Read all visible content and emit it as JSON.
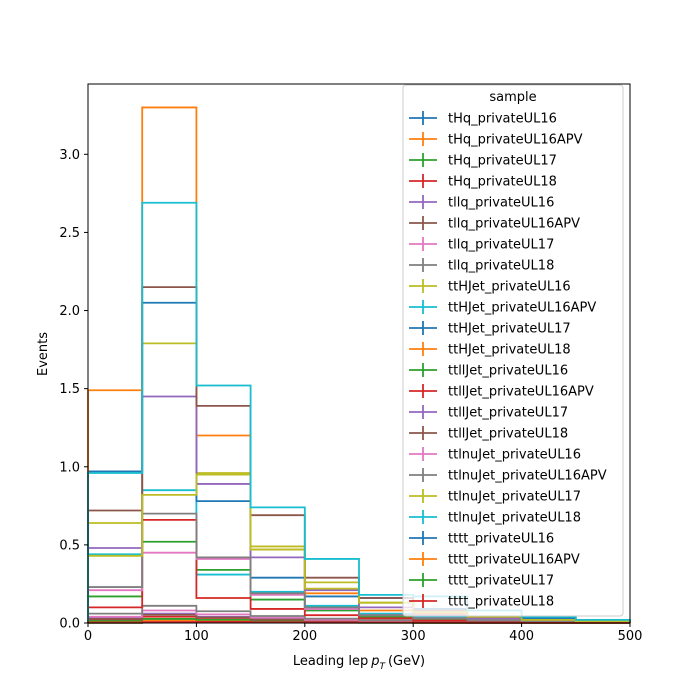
{
  "chart_data": {
    "type": "step-histogram",
    "xlabel": "Leading lep",
    "xlabel_sub": "T",
    "xlabel_unit": "(GeV)",
    "ylabel": "Events",
    "xlim": [
      0,
      500
    ],
    "ylim": [
      0,
      3.45
    ],
    "x_ticks": [
      0,
      100,
      200,
      300,
      400,
      500
    ],
    "y_ticks": [
      0.0,
      0.5,
      1.0,
      1.5,
      2.0,
      2.5,
      3.0
    ],
    "bin_edges": [
      0,
      50,
      100,
      150,
      200,
      250,
      300,
      350,
      400,
      450,
      500
    ],
    "legend_title": "sample",
    "legend_position": "upper-right",
    "series": [
      {
        "name": "tHq_privateUL16",
        "color": "#1f77b4",
        "values": [
          0.012,
          0.02,
          0.016,
          0.011,
          0.007,
          0.005,
          0.003,
          0.002,
          0.001,
          0.001
        ]
      },
      {
        "name": "tHq_privateUL16APV",
        "color": "#ff7f0e",
        "values": [
          0.01,
          0.017,
          0.014,
          0.01,
          0.006,
          0.004,
          0.003,
          0.002,
          0.001,
          0.001
        ]
      },
      {
        "name": "tHq_privateUL17",
        "color": "#2ca02c",
        "values": [
          0.016,
          0.026,
          0.021,
          0.014,
          0.009,
          0.006,
          0.004,
          0.003,
          0.002,
          0.001
        ]
      },
      {
        "name": "tHq_privateUL18",
        "color": "#d62728",
        "values": [
          0.024,
          0.04,
          0.032,
          0.021,
          0.013,
          0.009,
          0.006,
          0.004,
          0.003,
          0.002
        ]
      },
      {
        "name": "tllq_privateUL16",
        "color": "#9467bd",
        "values": [
          0.03,
          0.06,
          0.04,
          0.025,
          0.015,
          0.01,
          0.007,
          0.005,
          0.003,
          0.002
        ]
      },
      {
        "name": "tllq_privateUL16APV",
        "color": "#8c564b",
        "values": [
          0.026,
          0.052,
          0.035,
          0.022,
          0.013,
          0.009,
          0.006,
          0.004,
          0.003,
          0.002
        ]
      },
      {
        "name": "tllq_privateUL17",
        "color": "#e377c2",
        "values": [
          0.04,
          0.08,
          0.055,
          0.035,
          0.02,
          0.013,
          0.009,
          0.006,
          0.004,
          0.003
        ]
      },
      {
        "name": "tllq_privateUL18",
        "color": "#7f7f7f",
        "values": [
          0.06,
          0.11,
          0.075,
          0.045,
          0.028,
          0.018,
          0.012,
          0.008,
          0.005,
          0.003
        ]
      },
      {
        "name": "ttHJet_privateUL16",
        "color": "#bcbd22",
        "values": [
          0.64,
          1.79,
          0.96,
          0.49,
          0.26,
          0.13,
          0.08,
          0.04,
          0.02,
          0.01
        ]
      },
      {
        "name": "ttHJet_privateUL16APV",
        "color": "#17becf",
        "values": [
          0.44,
          0.85,
          0.31,
          0.2,
          0.11,
          0.06,
          0.04,
          0.02,
          0.01,
          0.005
        ]
      },
      {
        "name": "ttHJet_privateUL17",
        "color": "#1f77b4",
        "values": [
          0.97,
          2.05,
          0.78,
          0.29,
          0.17,
          0.16,
          0.09,
          0.03,
          0.03,
          0.01
        ]
      },
      {
        "name": "ttHJet_privateUL18",
        "color": "#ff7f0e",
        "values": [
          1.49,
          3.3,
          1.2,
          0.47,
          0.19,
          0.08,
          0.06,
          0.03,
          0.02,
          0.01
        ]
      },
      {
        "name": "ttllJet_privateUL16",
        "color": "#2ca02c",
        "values": [
          0.17,
          0.52,
          0.34,
          0.15,
          0.08,
          0.04,
          0.02,
          0.01,
          0.005,
          0.003
        ]
      },
      {
        "name": "ttllJet_privateUL16APV",
        "color": "#d62728",
        "values": [
          0.1,
          0.66,
          0.16,
          0.09,
          0.05,
          0.03,
          0.015,
          0.01,
          0.005,
          0.003
        ]
      },
      {
        "name": "ttllJet_privateUL17",
        "color": "#9467bd",
        "values": [
          0.48,
          1.45,
          0.89,
          0.42,
          0.21,
          0.1,
          0.05,
          0.03,
          0.015,
          0.008
        ]
      },
      {
        "name": "ttllJet_privateUL18",
        "color": "#8c564b",
        "values": [
          0.72,
          2.15,
          1.39,
          0.69,
          0.29,
          0.16,
          0.08,
          0.04,
          0.02,
          0.01
        ]
      },
      {
        "name": "ttlnuJet_privateUL16",
        "color": "#e377c2",
        "values": [
          0.21,
          0.45,
          0.41,
          0.18,
          0.09,
          0.05,
          0.03,
          0.015,
          0.008,
          0.004
        ]
      },
      {
        "name": "ttlnuJet_privateUL16APV",
        "color": "#7f7f7f",
        "values": [
          0.23,
          0.7,
          0.42,
          0.19,
          0.1,
          0.05,
          0.03,
          0.015,
          0.008,
          0.004
        ]
      },
      {
        "name": "ttlnuJet_privateUL17",
        "color": "#bcbd22",
        "values": [
          0.43,
          0.82,
          0.95,
          0.47,
          0.22,
          0.13,
          0.07,
          0.04,
          0.02,
          0.01
        ]
      },
      {
        "name": "ttlnuJet_privateUL18",
        "color": "#17becf",
        "values": [
          0.96,
          2.69,
          1.52,
          0.74,
          0.41,
          0.18,
          0.17,
          0.08,
          0.04,
          0.02
        ]
      },
      {
        "name": "tttt_privateUL16",
        "color": "#1f77b4",
        "values": [
          0.001,
          0.003,
          0.004,
          0.003,
          0.002,
          0.002,
          0.001,
          0.001,
          0.001,
          0.0
        ]
      },
      {
        "name": "tttt_privateUL16APV",
        "color": "#ff7f0e",
        "values": [
          0.001,
          0.003,
          0.004,
          0.003,
          0.002,
          0.002,
          0.001,
          0.001,
          0.001,
          0.0
        ]
      },
      {
        "name": "tttt_privateUL17",
        "color": "#2ca02c",
        "values": [
          0.002,
          0.004,
          0.005,
          0.004,
          0.003,
          0.002,
          0.001,
          0.001,
          0.001,
          0.0
        ]
      },
      {
        "name": "tttt_privateUL18",
        "color": "#d62728",
        "values": [
          0.003,
          0.006,
          0.007,
          0.005,
          0.004,
          0.003,
          0.002,
          0.001,
          0.001,
          0.001
        ]
      }
    ]
  }
}
